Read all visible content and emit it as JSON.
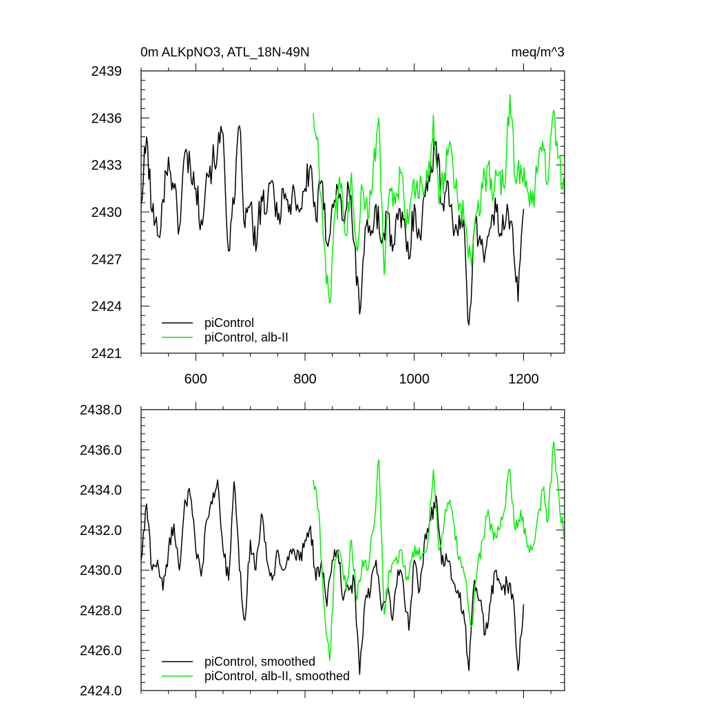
{
  "chart_data": [
    {
      "type": "line",
      "title": "0m ALKpNO3, ATL_18N-49N",
      "units": "meq/m^3",
      "xlim": [
        500,
        1275
      ],
      "ylim": [
        2421,
        2439
      ],
      "yticks": [
        "2421",
        "2424",
        "2427",
        "2430",
        "2433",
        "2436",
        "2439"
      ],
      "xticks": [
        "600",
        "800",
        "1000",
        "1200"
      ],
      "legend_position": "bottom-left",
      "series": [
        {
          "name": "piControl",
          "color": "#000000",
          "x": [
            500,
            510,
            520,
            530,
            540,
            550,
            560,
            570,
            580,
            590,
            600,
            610,
            620,
            630,
            640,
            650,
            660,
            670,
            680,
            690,
            700,
            710,
            720,
            730,
            740,
            750,
            760,
            770,
            780,
            790,
            800,
            810,
            820,
            830,
            840,
            850,
            860,
            870,
            880,
            890,
            900,
            910,
            920,
            930,
            940,
            950,
            960,
            970,
            980,
            990,
            1000,
            1010,
            1020,
            1030,
            1040,
            1050,
            1060,
            1070,
            1080,
            1090,
            1100,
            1110,
            1120,
            1130,
            1140,
            1150,
            1160,
            1170,
            1180,
            1190,
            1200
          ],
          "y": [
            2430.5,
            2434.8,
            2430.0,
            2428.5,
            2430.8,
            2433.5,
            2431.5,
            2429.0,
            2433.8,
            2433.0,
            2431.5,
            2429.5,
            2432.5,
            2433.0,
            2434.0,
            2435.0,
            2427.5,
            2430.5,
            2435.5,
            2429.0,
            2430.5,
            2427.5,
            2431.0,
            2430.0,
            2432.0,
            2429.5,
            2431.5,
            2430.0,
            2431.5,
            2430.0,
            2431.5,
            2433.0,
            2429.5,
            2432.0,
            2428.0,
            2430.5,
            2431.5,
            2429.5,
            2431.5,
            2428.0,
            2423.5,
            2429.0,
            2428.5,
            2430.5,
            2428.0,
            2430.0,
            2427.5,
            2429.5,
            2429.5,
            2427.0,
            2430.5,
            2428.5,
            2431.0,
            2433.0,
            2434.5,
            2430.5,
            2432.0,
            2429.5,
            2428.5,
            2429.5,
            2422.8,
            2429.0,
            2428.5,
            2427.5,
            2429.0,
            2430.0,
            2428.5,
            2430.5,
            2429.0,
            2424.3,
            2430.2
          ]
        },
        {
          "name": "piControl, alb-II",
          "color": "#00ee00",
          "x": [
            815,
            825,
            835,
            845,
            855,
            865,
            875,
            885,
            895,
            905,
            915,
            925,
            935,
            945,
            955,
            965,
            975,
            985,
            995,
            1005,
            1015,
            1025,
            1035,
            1045,
            1055,
            1065,
            1075,
            1085,
            1095,
            1105,
            1115,
            1125,
            1135,
            1145,
            1155,
            1165,
            1175,
            1185,
            1195,
            1205,
            1215,
            1225,
            1235,
            1245,
            1255,
            1265,
            1275
          ],
          "y": [
            2436.3,
            2433.5,
            2428.0,
            2424.2,
            2430.0,
            2431.5,
            2428.5,
            2432.5,
            2427.5,
            2431.5,
            2429.5,
            2433.0,
            2436.0,
            2426.0,
            2431.5,
            2430.5,
            2432.5,
            2429.0,
            2431.0,
            2432.0,
            2431.5,
            2432.0,
            2436.2,
            2430.5,
            2432.5,
            2434.5,
            2431.5,
            2430.5,
            2429.0,
            2426.5,
            2430.0,
            2431.5,
            2433.0,
            2431.0,
            2432.5,
            2431.5,
            2437.5,
            2432.0,
            2433.0,
            2432.0,
            2430.5,
            2432.5,
            2434.5,
            2432.0,
            2436.5,
            2433.5,
            2431.0
          ]
        }
      ]
    },
    {
      "type": "line",
      "xlim": [
        500,
        1275
      ],
      "ylim": [
        2424.0,
        2438.0
      ],
      "yticks": [
        "2424.0",
        "2426.0",
        "2428.0",
        "2430.0",
        "2432.0",
        "2434.0",
        "2436.0",
        "2438.0"
      ],
      "legend_position": "bottom-left",
      "series": [
        {
          "name": "piControl, smoothed",
          "color": "#000000",
          "x": [
            500,
            510,
            520,
            530,
            540,
            550,
            560,
            570,
            580,
            590,
            600,
            610,
            620,
            630,
            640,
            650,
            660,
            670,
            680,
            690,
            700,
            710,
            720,
            730,
            740,
            750,
            760,
            770,
            780,
            790,
            800,
            810,
            820,
            830,
            840,
            850,
            860,
            870,
            880,
            890,
            900,
            910,
            920,
            930,
            940,
            950,
            960,
            970,
            980,
            990,
            1000,
            1010,
            1020,
            1030,
            1040,
            1050,
            1060,
            1070,
            1080,
            1090,
            1100,
            1110,
            1120,
            1130,
            1140,
            1150,
            1160,
            1170,
            1180,
            1190,
            1200
          ],
          "y": [
            2430.5,
            2433.3,
            2430.0,
            2430.5,
            2429.0,
            2431.0,
            2432.3,
            2430.0,
            2433.5,
            2433.7,
            2431.0,
            2429.7,
            2432.5,
            2433.3,
            2434.5,
            2431.0,
            2429.5,
            2434.4,
            2430.0,
            2427.5,
            2431.5,
            2430.0,
            2432.8,
            2430.5,
            2429.5,
            2431.0,
            2430.0,
            2430.5,
            2431.0,
            2430.5,
            2431.5,
            2432.2,
            2429.5,
            2430.5,
            2428.2,
            2430.5,
            2431.0,
            2428.5,
            2429.0,
            2429.5,
            2424.8,
            2428.5,
            2429.0,
            2430.5,
            2428.0,
            2429.0,
            2427.5,
            2430.0,
            2429.3,
            2427.0,
            2430.5,
            2429.0,
            2431.8,
            2432.5,
            2433.7,
            2430.3,
            2430.5,
            2429.5,
            2429.0,
            2428.0,
            2425.0,
            2429.5,
            2428.5,
            2426.8,
            2428.5,
            2430.0,
            2429.0,
            2429.3,
            2428.8,
            2425.0,
            2428.3
          ]
        },
        {
          "name": "piControl, alb-II, smoothed",
          "color": "#00ee00",
          "x": [
            815,
            825,
            835,
            845,
            855,
            865,
            875,
            885,
            895,
            905,
            915,
            925,
            935,
            945,
            955,
            965,
            975,
            985,
            995,
            1005,
            1015,
            1025,
            1035,
            1045,
            1055,
            1065,
            1075,
            1085,
            1095,
            1105,
            1115,
            1125,
            1135,
            1145,
            1155,
            1165,
            1175,
            1185,
            1195,
            1205,
            1215,
            1225,
            1235,
            1245,
            1255,
            1265,
            1275
          ],
          "y": [
            2434.5,
            2433.0,
            2428.2,
            2425.5,
            2430.5,
            2430.8,
            2429.0,
            2431.5,
            2428.5,
            2430.5,
            2430.0,
            2432.0,
            2435.5,
            2427.8,
            2430.0,
            2430.5,
            2431.0,
            2429.5,
            2430.5,
            2431.0,
            2430.8,
            2431.5,
            2435.0,
            2431.0,
            2432.5,
            2433.5,
            2431.5,
            2430.5,
            2429.5,
            2427.2,
            2430.0,
            2431.5,
            2433.0,
            2431.5,
            2432.0,
            2433.0,
            2435.0,
            2432.0,
            2433.0,
            2431.5,
            2431.0,
            2432.5,
            2434.0,
            2432.5,
            2436.4,
            2433.5,
            2431.5
          ]
        }
      ]
    }
  ]
}
